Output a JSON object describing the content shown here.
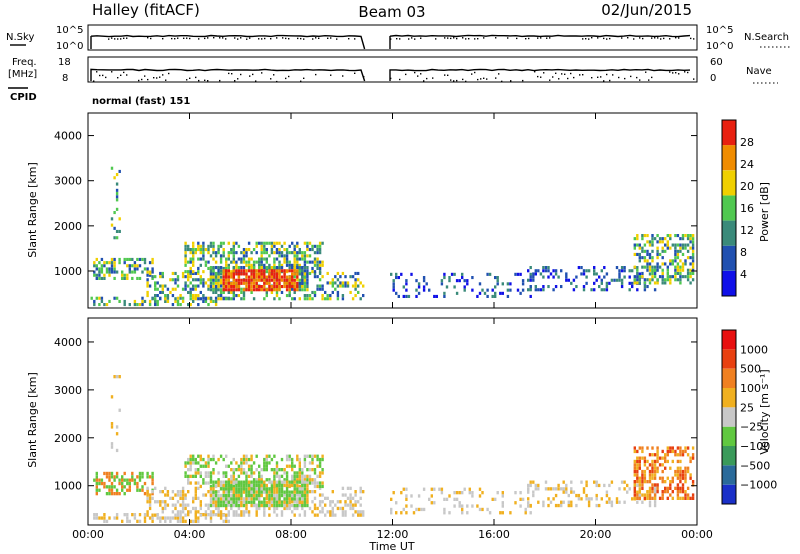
{
  "header": {
    "station": "Halley (fitACF)",
    "beam": "Beam 03",
    "date": "02/Jun/2015"
  },
  "status_panels": {
    "nsky_label": "N.Sky",
    "nsky_ticks": [
      "10^5",
      "10^0"
    ],
    "nsearch_label": "N.Search",
    "nsearch_ticks": [
      "10^5",
      "10^0"
    ],
    "freq_label": "Freq.",
    "freq_unit": "[MHz]",
    "freq_ticks": [
      "18",
      "8"
    ],
    "nave_label": "Nave",
    "nave_ticks": [
      "60",
      "0"
    ],
    "cpid_label": "CPID",
    "cpid_value": "normal (fast) 151"
  },
  "chart_data": [
    {
      "type": "heatmap",
      "name": "power",
      "ylabel": "Slant Range [km]",
      "ylim": [
        180,
        4500
      ],
      "y_ticks": [
        1000,
        2000,
        3000,
        4000
      ],
      "xlim": [
        0,
        24
      ],
      "colorbar_label": "Power [dB]",
      "colorbar_ticks": [
        "4",
        "8",
        "12",
        "16",
        "20",
        "24",
        "28"
      ],
      "colors": [
        "#1010e8",
        "#2050b0",
        "#3a8a7a",
        "#50c850",
        "#f0d000",
        "#f08c00",
        "#e82010"
      ],
      "data_gap_hours": [
        10.9,
        11.9
      ]
    },
    {
      "type": "heatmap",
      "name": "velocity",
      "ylabel": "Slant Range [km]",
      "ylim": [
        180,
        4500
      ],
      "y_ticks": [
        1000,
        2000,
        3000,
        4000
      ],
      "xlim": [
        0,
        24
      ],
      "colorbar_label": "Velocity [m s⁻¹]",
      "colorbar_ticks": [
        "1000",
        "500",
        "100",
        "25",
        "−25",
        "−100",
        "−500",
        "−1000"
      ],
      "colors": [
        "#1a30c8",
        "#2a6a9a",
        "#3a9a5a",
        "#60c840",
        "#c8c8c8",
        "#f0b020",
        "#f08020",
        "#e84010",
        "#e81010"
      ],
      "data_gap_hours": [
        10.9,
        11.9
      ]
    }
  ],
  "x_axis": {
    "ticks": [
      "00:00",
      "04:00",
      "08:00",
      "12:00",
      "16:00",
      "20:00",
      "00:00"
    ],
    "label": "Time UT"
  }
}
